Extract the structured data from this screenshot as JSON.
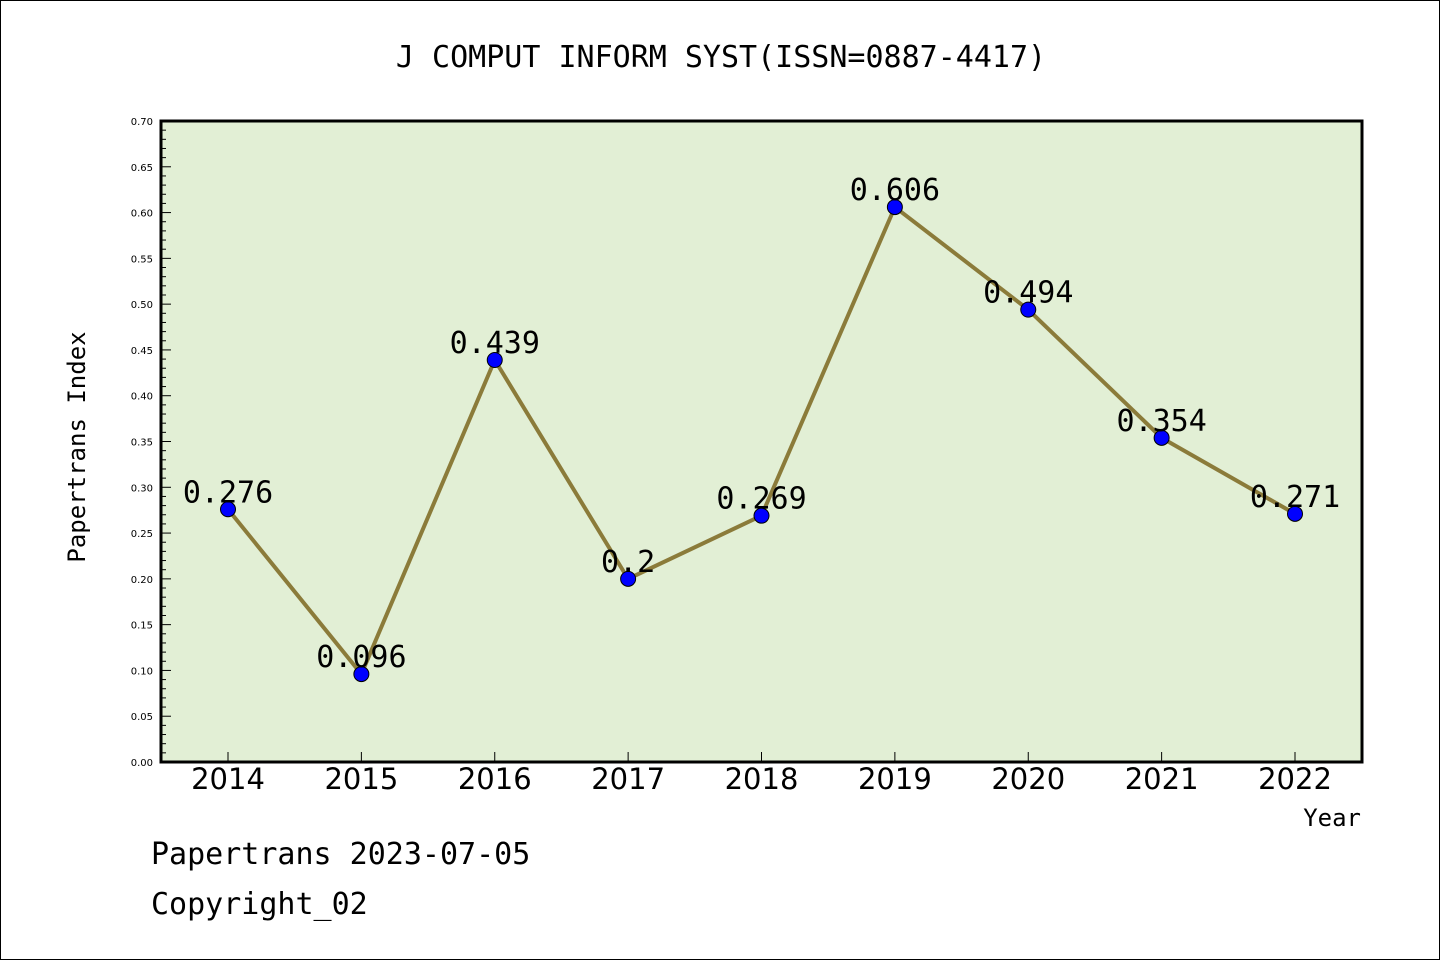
{
  "chart_data": {
    "type": "line",
    "title": "J COMPUT INFORM SYST(ISSN=0887-4417)",
    "xlabel": "Year",
    "ylabel": "Papertrans Index",
    "categories": [
      "2014",
      "2015",
      "2016",
      "2017",
      "2018",
      "2019",
      "2020",
      "2021",
      "2022"
    ],
    "values": [
      0.276,
      0.096,
      0.439,
      0.2,
      0.269,
      0.606,
      0.494,
      0.354,
      0.271
    ],
    "data_labels": [
      "0.276",
      "0.096",
      "0.439",
      "0.2",
      "0.269",
      "0.606",
      "0.494",
      "0.354",
      "0.271"
    ],
    "ylim": [
      0,
      0.7
    ],
    "yticks": [
      "0.00",
      "0.05",
      "0.10",
      "0.15",
      "0.20",
      "0.25",
      "0.30",
      "0.35",
      "0.40",
      "0.45",
      "0.50",
      "0.55",
      "0.60",
      "0.65",
      "0.70"
    ],
    "grid": false,
    "colors": {
      "plot_background": "#e2efd5",
      "line": "#8b7b3a",
      "marker": "#0000ff"
    }
  },
  "footer": {
    "date_line": "Papertrans 2023-07-05",
    "copyright": "Copyright_02"
  }
}
